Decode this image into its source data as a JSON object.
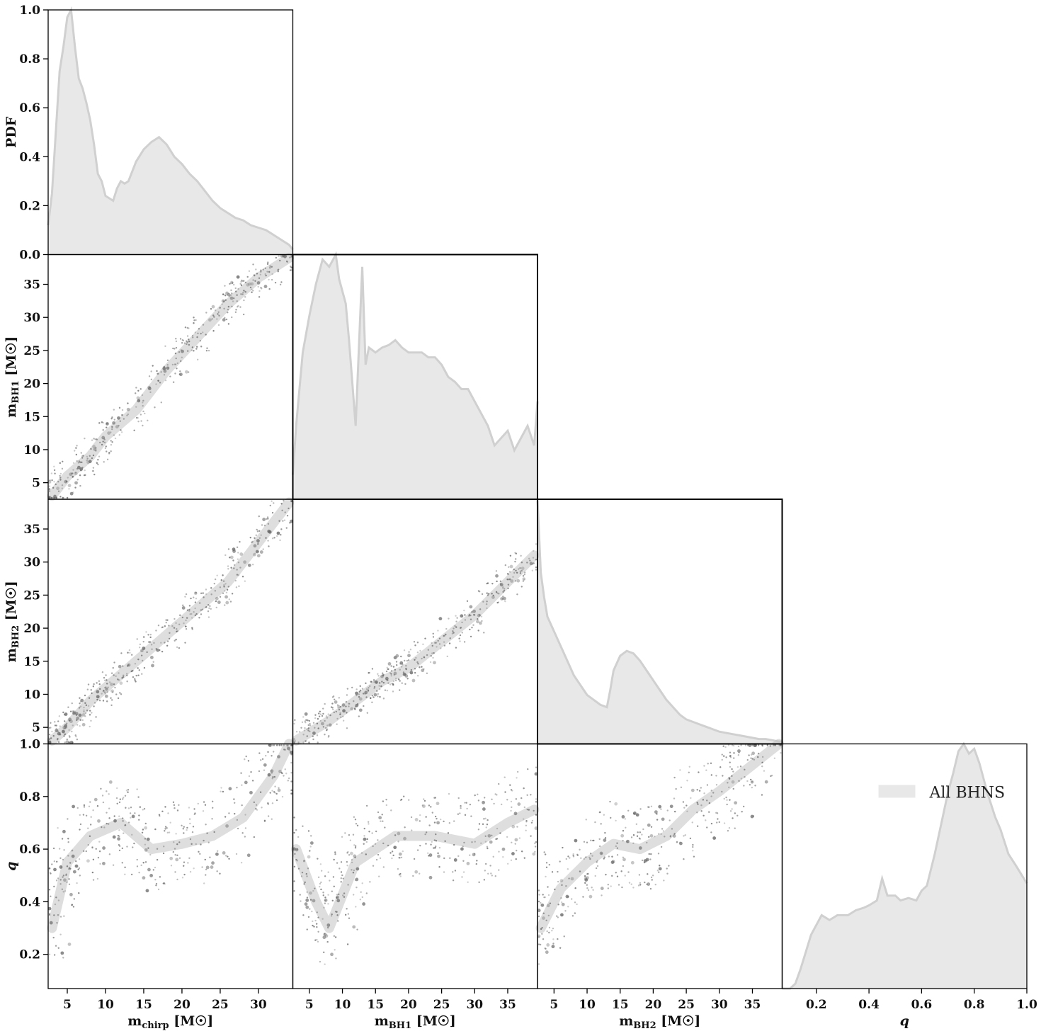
{
  "chart_data": {
    "type": "corner",
    "fill_color": "#e8e8e8",
    "line_color": "#d0d0d0",
    "point_color": "#666666",
    "variables": [
      {
        "label_main": "m",
        "label_sub": "chirp",
        "label_unit": " [M☉]",
        "range": [
          2.5,
          34.5
        ],
        "ticks": [
          5,
          10,
          15,
          20,
          25,
          30
        ]
      },
      {
        "label_main": "m",
        "label_sub": "BH1",
        "label_unit": " [M☉]",
        "range": [
          2.5,
          39.5
        ],
        "ticks": [
          5,
          10,
          15,
          20,
          25,
          30,
          35
        ]
      },
      {
        "label_main": "m",
        "label_sub": "BH2",
        "label_unit": " [M☉]",
        "range": [
          2.5,
          39.5
        ],
        "ticks": [
          5,
          10,
          15,
          20,
          25,
          30,
          35
        ]
      },
      {
        "label_main": "q",
        "label_sub": "",
        "label_unit": "",
        "range": [
          0.07,
          1.0
        ],
        "ticks": [
          0.2,
          0.4,
          0.6,
          0.8,
          1.0
        ]
      }
    ],
    "diag_ylabel": "PDF",
    "diag_yticks": [
      "0.0",
      "0.2",
      "0.4",
      "0.6",
      "0.8",
      "1.0"
    ],
    "legend": {
      "label": "All BHNS",
      "position": "upper-right of q panel"
    },
    "diagonals": [
      {
        "variable": "m_chirp",
        "x": [
          2.5,
          3.0,
          3.5,
          4.0,
          4.5,
          5.0,
          5.5,
          6.0,
          6.5,
          7.0,
          7.5,
          8.0,
          8.5,
          9.0,
          9.5,
          10.0,
          11.0,
          11.5,
          12.0,
          12.5,
          13.0,
          14.0,
          15.0,
          16.0,
          16.5,
          17.0,
          18.0,
          19.0,
          20.0,
          21.0,
          22.0,
          23.0,
          24.0,
          25.0,
          26.0,
          27.0,
          28.0,
          29.0,
          30.0,
          31.0,
          32.0,
          33.0,
          34.0,
          34.5
        ],
        "y": [
          0.12,
          0.25,
          0.5,
          0.75,
          0.85,
          0.97,
          1.0,
          0.85,
          0.72,
          0.68,
          0.62,
          0.55,
          0.45,
          0.33,
          0.3,
          0.24,
          0.22,
          0.27,
          0.3,
          0.29,
          0.3,
          0.38,
          0.43,
          0.46,
          0.47,
          0.48,
          0.45,
          0.4,
          0.37,
          0.33,
          0.3,
          0.26,
          0.22,
          0.19,
          0.17,
          0.15,
          0.14,
          0.12,
          0.11,
          0.1,
          0.08,
          0.06,
          0.04,
          0.02
        ]
      },
      {
        "variable": "m_BH1",
        "x": [
          2.5,
          3.0,
          4.0,
          5.0,
          6.0,
          7.0,
          8.0,
          9.0,
          9.5,
          10.0,
          10.5,
          11.0,
          12.0,
          13.0,
          13.5,
          14.0,
          15.0,
          16.0,
          17.0,
          18.0,
          19.0,
          20.0,
          21.0,
          22.0,
          23.0,
          24.0,
          25.0,
          26.0,
          27.0,
          28.0,
          29.0,
          30.0,
          31.0,
          32.0,
          33.0,
          34.0,
          35.0,
          36.0,
          37.0,
          38.0,
          39.0,
          39.5
        ],
        "y": [
          0.1,
          0.3,
          0.6,
          0.75,
          0.88,
          0.98,
          0.95,
          1.0,
          0.9,
          0.85,
          0.8,
          0.65,
          0.3,
          0.95,
          0.55,
          0.62,
          0.6,
          0.62,
          0.63,
          0.65,
          0.62,
          0.6,
          0.6,
          0.6,
          0.58,
          0.58,
          0.55,
          0.5,
          0.48,
          0.45,
          0.45,
          0.4,
          0.35,
          0.3,
          0.22,
          0.25,
          0.28,
          0.2,
          0.25,
          0.3,
          0.22,
          0.4
        ]
      },
      {
        "variable": "m_BH2",
        "x": [
          2.5,
          3.0,
          3.5,
          4.0,
          5.0,
          6.0,
          7.0,
          8.0,
          9.0,
          10.0,
          11.0,
          12.0,
          13.0,
          13.5,
          14.0,
          15.0,
          16.0,
          17.0,
          18.0,
          19.0,
          20.0,
          21.0,
          22.0,
          23.0,
          24.0,
          25.0,
          26.0,
          27.0,
          28.0,
          29.0,
          30.0,
          31.0,
          32.0,
          33.0,
          34.0,
          35.0,
          36.0,
          37.0,
          38.0,
          39.0,
          39.5
        ],
        "y": [
          1.0,
          0.7,
          0.6,
          0.52,
          0.46,
          0.4,
          0.34,
          0.28,
          0.24,
          0.2,
          0.18,
          0.16,
          0.15,
          0.22,
          0.3,
          0.36,
          0.38,
          0.37,
          0.34,
          0.3,
          0.26,
          0.22,
          0.18,
          0.15,
          0.12,
          0.1,
          0.09,
          0.08,
          0.07,
          0.06,
          0.05,
          0.045,
          0.04,
          0.035,
          0.03,
          0.025,
          0.02,
          0.02,
          0.015,
          0.01,
          0.01
        ]
      },
      {
        "variable": "q",
        "x": [
          0.07,
          0.1,
          0.12,
          0.14,
          0.16,
          0.18,
          0.2,
          0.22,
          0.25,
          0.28,
          0.3,
          0.32,
          0.35,
          0.38,
          0.4,
          0.43,
          0.45,
          0.47,
          0.5,
          0.52,
          0.55,
          0.58,
          0.6,
          0.62,
          0.65,
          0.68,
          0.7,
          0.72,
          0.74,
          0.76,
          0.78,
          0.8,
          0.82,
          0.85,
          0.88,
          0.9,
          0.93,
          0.96,
          1.0
        ],
        "y": [
          0.0,
          0.0,
          0.02,
          0.08,
          0.15,
          0.22,
          0.26,
          0.3,
          0.28,
          0.3,
          0.3,
          0.3,
          0.32,
          0.33,
          0.34,
          0.36,
          0.45,
          0.38,
          0.38,
          0.36,
          0.37,
          0.36,
          0.4,
          0.42,
          0.55,
          0.7,
          0.8,
          0.88,
          0.97,
          1.0,
          0.96,
          0.98,
          0.92,
          0.8,
          0.7,
          0.65,
          0.55,
          0.5,
          0.43
        ]
      }
    ],
    "scatter_trends": [
      {
        "row": 1,
        "col": 0,
        "description": "m_BH1 vs m_chirp",
        "points": [
          [
            3,
            3
          ],
          [
            5,
            6
          ],
          [
            8,
            9
          ],
          [
            10,
            12
          ],
          [
            14,
            16
          ],
          [
            18,
            22
          ],
          [
            22,
            27
          ],
          [
            26,
            32
          ],
          [
            30,
            36
          ],
          [
            34,
            39
          ]
        ]
      },
      {
        "row": 2,
        "col": 0,
        "description": "m_BH2 vs m_chirp",
        "points": [
          [
            3,
            3
          ],
          [
            5,
            5
          ],
          [
            8,
            9
          ],
          [
            10,
            11
          ],
          [
            14,
            15
          ],
          [
            18,
            19
          ],
          [
            22,
            23
          ],
          [
            26,
            27
          ],
          [
            30,
            33
          ],
          [
            34,
            39
          ]
        ]
      },
      {
        "row": 2,
        "col": 1,
        "description": "m_BH2 vs m_BH1",
        "points": [
          [
            3,
            3
          ],
          [
            8,
            6
          ],
          [
            12,
            9
          ],
          [
            16,
            12
          ],
          [
            20,
            14
          ],
          [
            25,
            18
          ],
          [
            30,
            22
          ],
          [
            35,
            27
          ],
          [
            39,
            31
          ]
        ]
      },
      {
        "row": 3,
        "col": 0,
        "description": "q vs m_chirp",
        "points": [
          [
            3,
            0.3
          ],
          [
            5,
            0.55
          ],
          [
            8,
            0.65
          ],
          [
            12,
            0.7
          ],
          [
            16,
            0.6
          ],
          [
            20,
            0.62
          ],
          [
            24,
            0.65
          ],
          [
            28,
            0.72
          ],
          [
            32,
            0.88
          ],
          [
            34,
            1.0
          ]
        ]
      },
      {
        "row": 3,
        "col": 1,
        "description": "q vs m_BH1",
        "points": [
          [
            3,
            0.6
          ],
          [
            6,
            0.4
          ],
          [
            8,
            0.3
          ],
          [
            12,
            0.55
          ],
          [
            18,
            0.65
          ],
          [
            24,
            0.65
          ],
          [
            30,
            0.62
          ],
          [
            35,
            0.7
          ],
          [
            39,
            0.75
          ]
        ]
      },
      {
        "row": 3,
        "col": 2,
        "description": "q vs m_BH2",
        "points": [
          [
            3,
            0.3
          ],
          [
            6,
            0.45
          ],
          [
            10,
            0.55
          ],
          [
            14,
            0.62
          ],
          [
            18,
            0.6
          ],
          [
            22,
            0.65
          ],
          [
            26,
            0.75
          ],
          [
            30,
            0.82
          ],
          [
            34,
            0.9
          ],
          [
            39,
            1.0
          ]
        ]
      }
    ]
  }
}
